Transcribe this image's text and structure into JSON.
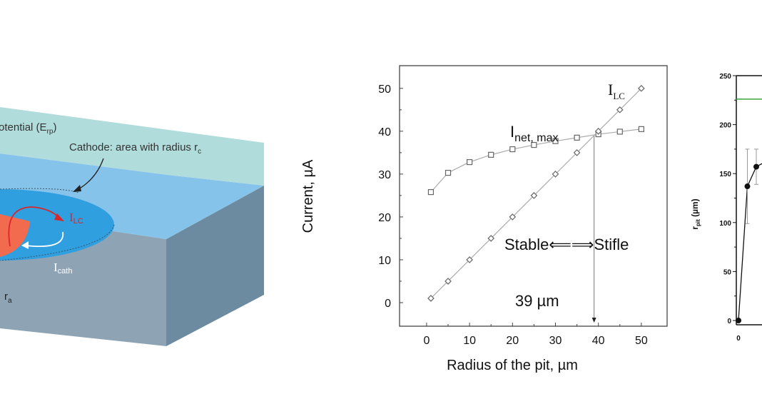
{
  "diagram": {
    "potential_label": "otential (E",
    "potential_sub": "rp",
    "potential_close": ")",
    "cathode_label": "Cathode: area with radius r",
    "cathode_sub": "c",
    "ilc_label": "I",
    "ilc_sub": "LC",
    "icath_label": "I",
    "icath_sub": "cath",
    "ra_label": "r",
    "ra_sub": "a",
    "colors": {
      "top_plate": "#a9d8d8",
      "surface": "#86c3ea",
      "cathode": "#2f9fe0",
      "pit": "#f26b4f",
      "front": "#8ea4b5",
      "side": "#6c8ba0",
      "ilc": "#d9262b"
    }
  },
  "chart_data": [
    {
      "type": "line",
      "title": "",
      "xlabel": "Radius of the pit, µm",
      "ylabel": "Current, µA",
      "xlim": [
        -6.3,
        56
      ],
      "ylim": [
        -5.5,
        55.3
      ],
      "xticks": [
        0,
        10,
        20,
        30,
        40,
        50
      ],
      "yticks": [
        0,
        10,
        20,
        30,
        40,
        50
      ],
      "grid": false,
      "series": [
        {
          "name": "I_net,max",
          "label": "I",
          "label_sub": "net, max",
          "marker": "square",
          "x": [
            1,
            5,
            10,
            15,
            20,
            25,
            30,
            35,
            40,
            45,
            50
          ],
          "y": [
            25.8,
            30.3,
            32.8,
            34.5,
            35.8,
            36.8,
            37.7,
            38.5,
            39.3,
            39.9,
            40.5
          ]
        },
        {
          "name": "I_LC",
          "label": "I",
          "label_sub": "LC",
          "marker": "diamond",
          "x": [
            1,
            5,
            10,
            15,
            20,
            25,
            30,
            35,
            40,
            45,
            50
          ],
          "y": [
            1,
            5,
            10,
            15,
            20,
            25,
            30,
            35,
            40,
            45,
            50
          ]
        }
      ],
      "annotations": {
        "stable_stifle": "Stable⟸⟹Stifle",
        "crossover": "39 µm",
        "crossover_x": 39
      }
    },
    {
      "type": "line",
      "ylabel": "r",
      "ylabel_sub": "pit",
      "ylabel_unit": " (µm)",
      "ylim": [
        0,
        250
      ],
      "yticks": [
        0,
        50,
        100,
        150,
        200,
        250
      ],
      "xticks": [
        0
      ],
      "reference_line": 226,
      "reference_color": "#3aa53a",
      "points": [
        {
          "x": 0,
          "y": 0,
          "err": 0
        },
        {
          "x": 1,
          "y": 137,
          "err": 38
        },
        {
          "x": 2,
          "y": 157,
          "err": 18
        },
        {
          "x": 3,
          "y": 162,
          "err": 0
        }
      ]
    }
  ]
}
